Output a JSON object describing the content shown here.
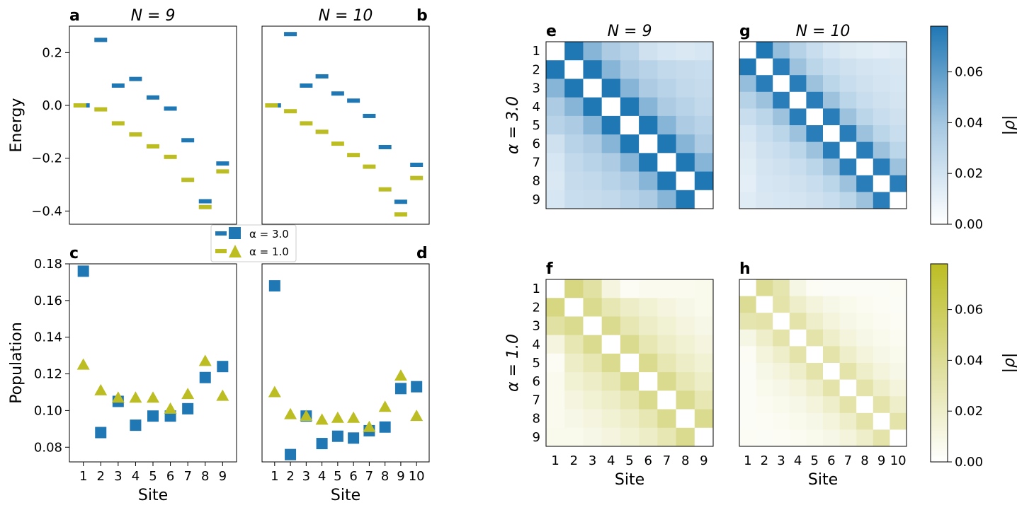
{
  "colors": {
    "alpha3": "#1f77b4",
    "alpha1": "#bcbd22",
    "diag": "#ffffff"
  },
  "legend": {
    "items": [
      "α = 3.0",
      "α = 1.0"
    ]
  },
  "chart_data": [
    {
      "id": "a",
      "type": "scatter",
      "marker": "hline",
      "letter": "a",
      "title": "N = 9",
      "ylabel": "Energy",
      "xlabel": "",
      "ylim": [
        -0.45,
        0.3
      ],
      "yticks": [
        0.2,
        0.0,
        -0.2,
        -0.4
      ],
      "ytick_labels": [
        "0.2",
        "0.0",
        "−0.2",
        "−0.4"
      ],
      "xlim": [
        0.2,
        9.8
      ],
      "series": [
        {
          "name": "α = 3.0",
          "x": [
            1,
            2,
            3,
            4,
            5,
            6,
            7,
            8,
            9
          ],
          "values": [
            0.0,
            0.248,
            0.075,
            0.1,
            0.03,
            -0.012,
            -0.132,
            -0.363,
            -0.22
          ]
        },
        {
          "name": "α = 1.0",
          "x": [
            0.8,
            2,
            3,
            4,
            5,
            6,
            7,
            8,
            9
          ],
          "values": [
            0.0,
            -0.015,
            -0.068,
            -0.11,
            -0.155,
            -0.195,
            -0.282,
            -0.385,
            -0.25
          ]
        }
      ]
    },
    {
      "id": "b",
      "type": "scatter",
      "marker": "hline",
      "letter": "b",
      "title": "N = 10",
      "ylabel": "",
      "xlabel": "",
      "ylim": [
        -0.45,
        0.3
      ],
      "yticks": [],
      "ytick_labels": [],
      "xlim": [
        0.2,
        10.8
      ],
      "series": [
        {
          "name": "α = 3.0",
          "x": [
            1,
            2,
            3,
            4,
            5,
            6,
            7,
            8,
            9,
            10
          ],
          "values": [
            0.0,
            0.27,
            0.075,
            0.11,
            0.045,
            0.018,
            -0.04,
            -0.158,
            -0.365,
            -0.225
          ]
        },
        {
          "name": "α = 1.0",
          "x": [
            0.8,
            2,
            3,
            4,
            5,
            6,
            7,
            8,
            9,
            10
          ],
          "values": [
            0.0,
            -0.022,
            -0.068,
            -0.1,
            -0.145,
            -0.188,
            -0.232,
            -0.318,
            -0.413,
            -0.275
          ]
        }
      ]
    },
    {
      "id": "c",
      "type": "scatter",
      "letter": "c",
      "title": "",
      "ylabel": "Population",
      "xlabel": "Site",
      "ylim": [
        0.072,
        0.18
      ],
      "yticks": [
        0.18,
        0.16,
        0.14,
        0.12,
        0.1,
        0.08
      ],
      "ytick_labels": [
        "0.18",
        "0.16",
        "0.14",
        "0.12",
        "0.10",
        "0.08"
      ],
      "xlim": [
        0.2,
        9.8
      ],
      "categories": [
        "1",
        "2",
        "3",
        "4",
        "5",
        "6",
        "7",
        "8",
        "9"
      ],
      "series": [
        {
          "name": "α = 3.0",
          "marker": "square",
          "values": [
            0.176,
            0.088,
            0.105,
            0.092,
            0.097,
            0.097,
            0.101,
            0.118,
            0.124
          ]
        },
        {
          "name": "α = 1.0",
          "marker": "triangle",
          "values": [
            0.125,
            0.111,
            0.107,
            0.107,
            0.107,
            0.101,
            0.109,
            0.127,
            0.108
          ]
        }
      ]
    },
    {
      "id": "d",
      "type": "scatter",
      "letter": "d",
      "title": "",
      "ylabel": "",
      "xlabel": "Site",
      "ylim": [
        0.072,
        0.18
      ],
      "yticks": [],
      "ytick_labels": [],
      "xlim": [
        0.2,
        10.8
      ],
      "categories": [
        "1",
        "2",
        "3",
        "4",
        "5",
        "6",
        "7",
        "8",
        "9",
        "10"
      ],
      "series": [
        {
          "name": "α = 3.0",
          "marker": "square",
          "values": [
            0.168,
            0.076,
            0.097,
            0.082,
            0.086,
            0.085,
            0.089,
            0.091,
            0.112,
            0.113
          ]
        },
        {
          "name": "α = 1.0",
          "marker": "triangle",
          "values": [
            0.11,
            0.098,
            0.097,
            0.095,
            0.096,
            0.096,
            0.091,
            0.102,
            0.119,
            0.097
          ]
        }
      ]
    },
    {
      "id": "e",
      "type": "heatmap",
      "cmap": "blue",
      "letter": "e",
      "title": "N = 9",
      "ylabel": "α = 3.0",
      "xlabel": "",
      "n": 9,
      "show_y_ticks": true,
      "show_x_ticks": false,
      "vmax": 0.078,
      "decay": [
        0,
        0.078,
        0.048,
        0.036,
        0.031,
        0.027,
        0.025,
        0.024,
        0.023,
        0.022
      ],
      "first_row": [
        0,
        0.078,
        0.048,
        0.036,
        0.031,
        0.021,
        0.018,
        0.016,
        0.018
      ],
      "categories": [
        "1",
        "2",
        "3",
        "4",
        "5",
        "6",
        "7",
        "8",
        "9"
      ]
    },
    {
      "id": "g",
      "type": "heatmap",
      "cmap": "blue",
      "letter": "g",
      "title": "N = 10",
      "ylabel": "",
      "xlabel": "",
      "n": 10,
      "show_y_ticks": false,
      "show_x_ticks": false,
      "vmax": 0.078,
      "decay": [
        0,
        0.075,
        0.042,
        0.03,
        0.024,
        0.021,
        0.019,
        0.018,
        0.017,
        0.016
      ],
      "first_row": [
        0,
        0.078,
        0.044,
        0.032,
        0.024,
        0.018,
        0.015,
        0.013,
        0.012,
        0.014
      ],
      "categories": [
        "1",
        "2",
        "3",
        "4",
        "5",
        "6",
        "7",
        "8",
        "9",
        "10"
      ]
    },
    {
      "id": "f",
      "type": "heatmap",
      "cmap": "olive",
      "letter": "f",
      "title": "",
      "ylabel": "α = 1.0",
      "xlabel": "Site",
      "n": 9,
      "show_y_ticks": true,
      "show_x_ticks": true,
      "vmax": 0.078,
      "decay": [
        0,
        0.042,
        0.028,
        0.021,
        0.016,
        0.012,
        0.009,
        0.007,
        0.006,
        0.005
      ],
      "first_row": [
        0,
        0.046,
        0.034,
        0.012,
        0.004,
        0.006,
        0.006,
        0.006,
        0.007
      ],
      "categories": [
        "1",
        "2",
        "3",
        "4",
        "5",
        "6",
        "7",
        "8",
        "9"
      ]
    },
    {
      "id": "h",
      "type": "heatmap",
      "cmap": "olive",
      "letter": "h",
      "title": "",
      "ylabel": "",
      "xlabel": "Site",
      "n": 10,
      "show_y_ticks": false,
      "show_x_ticks": true,
      "vmax": 0.078,
      "decay": [
        0,
        0.032,
        0.02,
        0.013,
        0.009,
        0.007,
        0.005,
        0.004,
        0.003,
        0.003
      ],
      "first_row": [
        0,
        0.04,
        0.03,
        0.01,
        0.004,
        0.003,
        0.003,
        0.003,
        0.003,
        0.004
      ],
      "categories": [
        "1",
        "2",
        "3",
        "4",
        "5",
        "6",
        "7",
        "8",
        "9",
        "10"
      ]
    },
    {
      "id": "cb-blue",
      "type": "colorbar",
      "cmap": "blue",
      "label": "|ρ|",
      "range": [
        0,
        0.078
      ],
      "ticks": [
        0.0,
        0.02,
        0.04,
        0.06
      ],
      "tick_labels": [
        "0.00",
        "0.02",
        "0.04",
        "0.06"
      ]
    },
    {
      "id": "cb-olive",
      "type": "colorbar",
      "cmap": "olive",
      "label": "|ρ|",
      "range": [
        0,
        0.078
      ],
      "ticks": [
        0.0,
        0.02,
        0.04,
        0.06
      ],
      "tick_labels": [
        "0.00",
        "0.02",
        "0.04",
        "0.06"
      ]
    }
  ]
}
